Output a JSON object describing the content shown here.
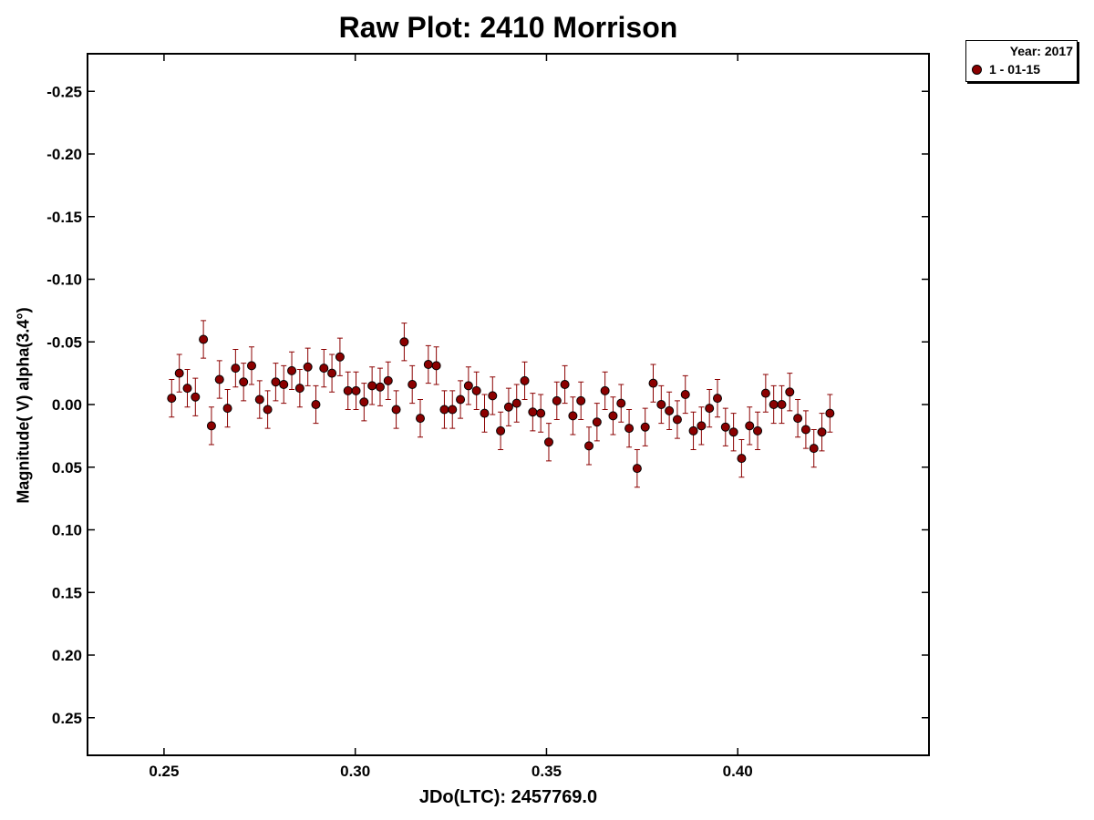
{
  "chart_data": {
    "type": "scatter",
    "title": "Raw Plot: 2410 Morrison",
    "xlabel": "JDo(LTC): 2457769.0",
    "ylabel": "Magnitude( V) alpha(3.4°)",
    "xlim": [
      0.23,
      0.45
    ],
    "ylim": [
      -0.28,
      0.28
    ],
    "y_inverted": true,
    "x_ticks": [
      "0.25",
      "0.30",
      "0.35",
      "0.40"
    ],
    "x_tick_values": [
      0.25,
      0.3,
      0.35,
      0.4
    ],
    "y_ticks": [
      "-0.25",
      "-0.20",
      "-0.15",
      "-0.10",
      "-0.05",
      "0.00",
      "0.05",
      "0.10",
      "0.15",
      "0.20",
      "0.25"
    ],
    "y_tick_values": [
      -0.25,
      -0.2,
      -0.15,
      -0.1,
      -0.05,
      0.0,
      0.05,
      0.1,
      0.15,
      0.2,
      0.25
    ],
    "grid": false,
    "legend": {
      "placement": "outside-top-right",
      "title": "Year: 2017",
      "entries": [
        "1 - 01-15"
      ]
    },
    "series": [
      {
        "name": "1 - 01-15",
        "color": "#8b0000",
        "error": 0.015,
        "x": [
          0.252,
          0.254,
          0.2561,
          0.2582,
          0.2603,
          0.2624,
          0.2645,
          0.2666,
          0.2687,
          0.2708,
          0.2729,
          0.275,
          0.2771,
          0.2792,
          0.2813,
          0.2834,
          0.2855,
          0.2876,
          0.2897,
          0.2918,
          0.2939,
          0.296,
          0.2981,
          0.3002,
          0.3023,
          0.3044,
          0.3065,
          0.3086,
          0.3107,
          0.3128,
          0.3149,
          0.317,
          0.3191,
          0.3212,
          0.3233,
          0.3254,
          0.3275,
          0.3296,
          0.3317,
          0.3338,
          0.3359,
          0.338,
          0.3401,
          0.3422,
          0.3443,
          0.3464,
          0.3485,
          0.3506,
          0.3527,
          0.3548,
          0.3569,
          0.359,
          0.3611,
          0.3632,
          0.3653,
          0.3674,
          0.3695,
          0.3716,
          0.3737,
          0.3758,
          0.3779,
          0.38,
          0.3821,
          0.3842,
          0.3863,
          0.3884,
          0.3905,
          0.3926,
          0.3947,
          0.3968,
          0.3989,
          0.401,
          0.4031,
          0.4052,
          0.4073,
          0.4094,
          0.4115,
          0.4136,
          0.4157,
          0.4178,
          0.4199,
          0.422,
          0.4241
        ],
        "y": [
          -0.005,
          -0.025,
          -0.013,
          -0.006,
          -0.052,
          0.017,
          -0.02,
          0.003,
          -0.029,
          -0.018,
          -0.031,
          -0.004,
          0.004,
          -0.018,
          -0.016,
          -0.027,
          -0.013,
          -0.03,
          0.0,
          -0.029,
          -0.025,
          -0.038,
          -0.011,
          -0.011,
          -0.002,
          -0.015,
          -0.014,
          -0.019,
          0.004,
          -0.05,
          -0.016,
          0.011,
          -0.032,
          -0.031,
          0.004,
          0.004,
          -0.004,
          -0.015,
          -0.011,
          0.007,
          -0.007,
          0.021,
          0.002,
          -0.001,
          -0.019,
          0.006,
          0.007,
          0.03,
          -0.003,
          -0.016,
          0.009,
          -0.003,
          0.033,
          0.014,
          -0.011,
          0.009,
          -0.001,
          0.019,
          0.051,
          0.018,
          -0.017,
          0.0,
          0.005,
          0.012,
          -0.008,
          0.021,
          0.017,
          0.003,
          -0.005,
          0.018,
          0.022,
          0.043,
          0.017,
          0.021,
          -0.009,
          0.0,
          0.0,
          -0.01,
          0.011,
          0.02,
          0.035,
          0.022,
          0.007
        ]
      }
    ]
  }
}
